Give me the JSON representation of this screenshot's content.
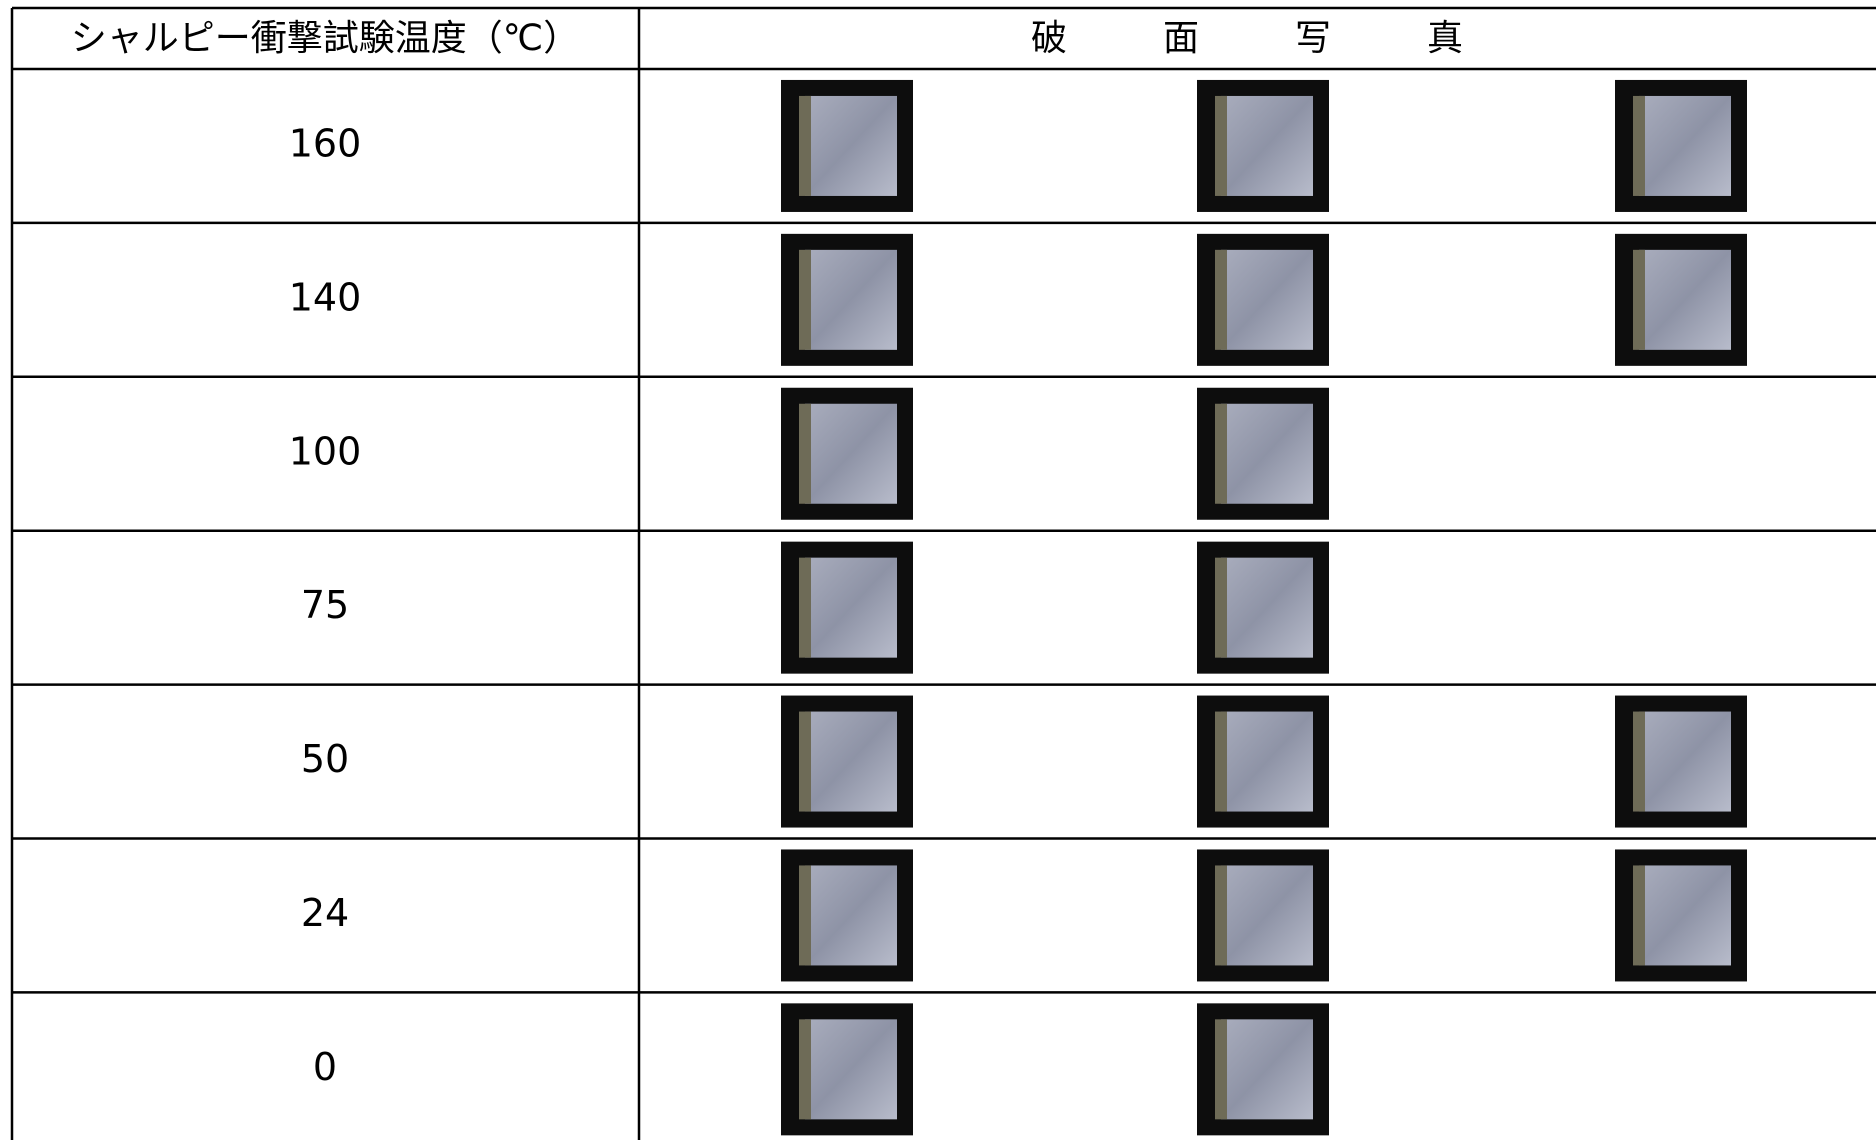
{
  "table": {
    "header": [
      "シャルピー衝撃試験温度（℃）",
      "破　面　写　真"
    ],
    "rows": [
      160,
      140,
      100,
      75,
      50,
      24,
      0
    ]
  }
}
